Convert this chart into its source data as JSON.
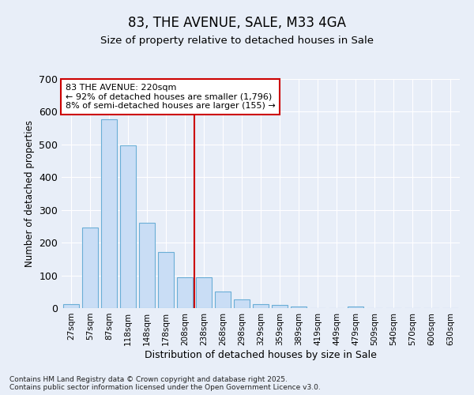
{
  "title1": "83, THE AVENUE, SALE, M33 4GA",
  "title2": "Size of property relative to detached houses in Sale",
  "xlabel": "Distribution of detached houses by size in Sale",
  "ylabel": "Number of detached properties",
  "bar_color": "#c9ddf5",
  "bar_edge_color": "#6aaed6",
  "vline_color": "#cc0000",
  "annotation_line1": "83 THE AVENUE: 220sqm",
  "annotation_line2": "← 92% of detached houses are smaller (1,796)",
  "annotation_line3": "8% of semi-detached houses are larger (155) →",
  "annotation_box_color": "#ffffff",
  "annotation_box_edge": "#cc0000",
  "categories": [
    "27sqm",
    "57sqm",
    "87sqm",
    "118sqm",
    "148sqm",
    "178sqm",
    "208sqm",
    "238sqm",
    "268sqm",
    "298sqm",
    "329sqm",
    "359sqm",
    "389sqm",
    "419sqm",
    "449sqm",
    "479sqm",
    "509sqm",
    "540sqm",
    "570sqm",
    "600sqm",
    "630sqm"
  ],
  "values": [
    13,
    247,
    578,
    498,
    261,
    172,
    95,
    95,
    51,
    27,
    12,
    10,
    5,
    0,
    0,
    4,
    0,
    0,
    0,
    0,
    0
  ],
  "ylim": [
    0,
    700
  ],
  "yticks": [
    0,
    100,
    200,
    300,
    400,
    500,
    600,
    700
  ],
  "background_color": "#e8eef8",
  "grid_color": "#ffffff",
  "footnote1": "Contains HM Land Registry data © Crown copyright and database right 2025.",
  "footnote2": "Contains public sector information licensed under the Open Government Licence v3.0.",
  "vline_bar_index": 6
}
